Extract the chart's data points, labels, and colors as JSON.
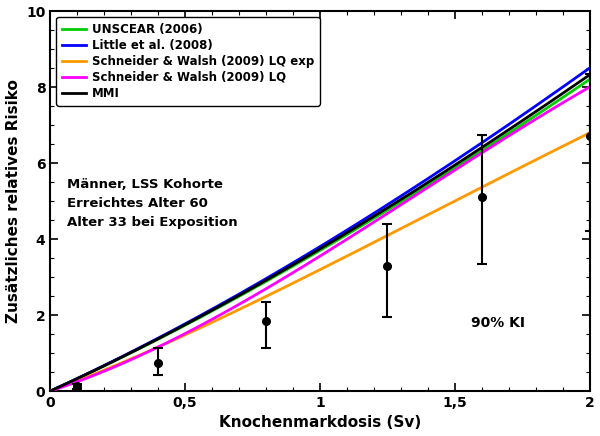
{
  "title": "",
  "xlabel": "Knochenmarkdosis (Sv)",
  "ylabel": "Zusätzliches relatives Risiko",
  "xlim": [
    0,
    2
  ],
  "ylim": [
    0,
    10
  ],
  "xticks": [
    0,
    0.5,
    1,
    1.5,
    2
  ],
  "xticklabels": [
    "0",
    "0,5",
    "1",
    "1,5",
    "2"
  ],
  "yticks": [
    0,
    2,
    4,
    6,
    8,
    10
  ],
  "annotation_text": "Männer, LSS Kohorte\nErreichtes Alter 60\nAlter 33 bei Exposition",
  "annotation_ki": "90% KI",
  "legend_labels": [
    "UNSCEAR (2006)",
    "Little et al. (2008)",
    "Schneider & Walsh (2009) LQ exp",
    "Schneider & Walsh (2009) LQ",
    "MMI"
  ],
  "line_colors": [
    "#00cc00",
    "#0000ff",
    "#ff9900",
    "#ff00ff",
    "#000000"
  ],
  "line_widths": [
    2.0,
    2.0,
    2.0,
    2.0,
    2.0
  ],
  "data_points_x": [
    0.1,
    0.4,
    0.8,
    1.25,
    1.6,
    2.0
  ],
  "data_points_y": [
    0.12,
    0.75,
    1.85,
    3.3,
    5.1,
    6.7
  ],
  "error_lower": [
    0.07,
    0.32,
    0.72,
    1.35,
    1.75,
    2.5
  ],
  "error_upper": [
    0.07,
    0.38,
    0.48,
    1.1,
    1.65,
    1.65
  ],
  "background_color": "#ffffff",
  "curve_params": {
    "unscear": {
      "a": 3.5,
      "b": 0.45,
      "power": 1.0
    },
    "little": {
      "a": 3.55,
      "b": 0.5,
      "power": 1.0
    },
    "sw_lq_exp": {
      "alpha1": 2.8,
      "alpha2": 1.2,
      "gamma": -0.35
    },
    "sw_lq": {
      "alpha1": 2.5,
      "alpha2": 1.3
    },
    "mmi": {
      "a": 3.5,
      "b": 0.47,
      "power": 1.0
    }
  }
}
